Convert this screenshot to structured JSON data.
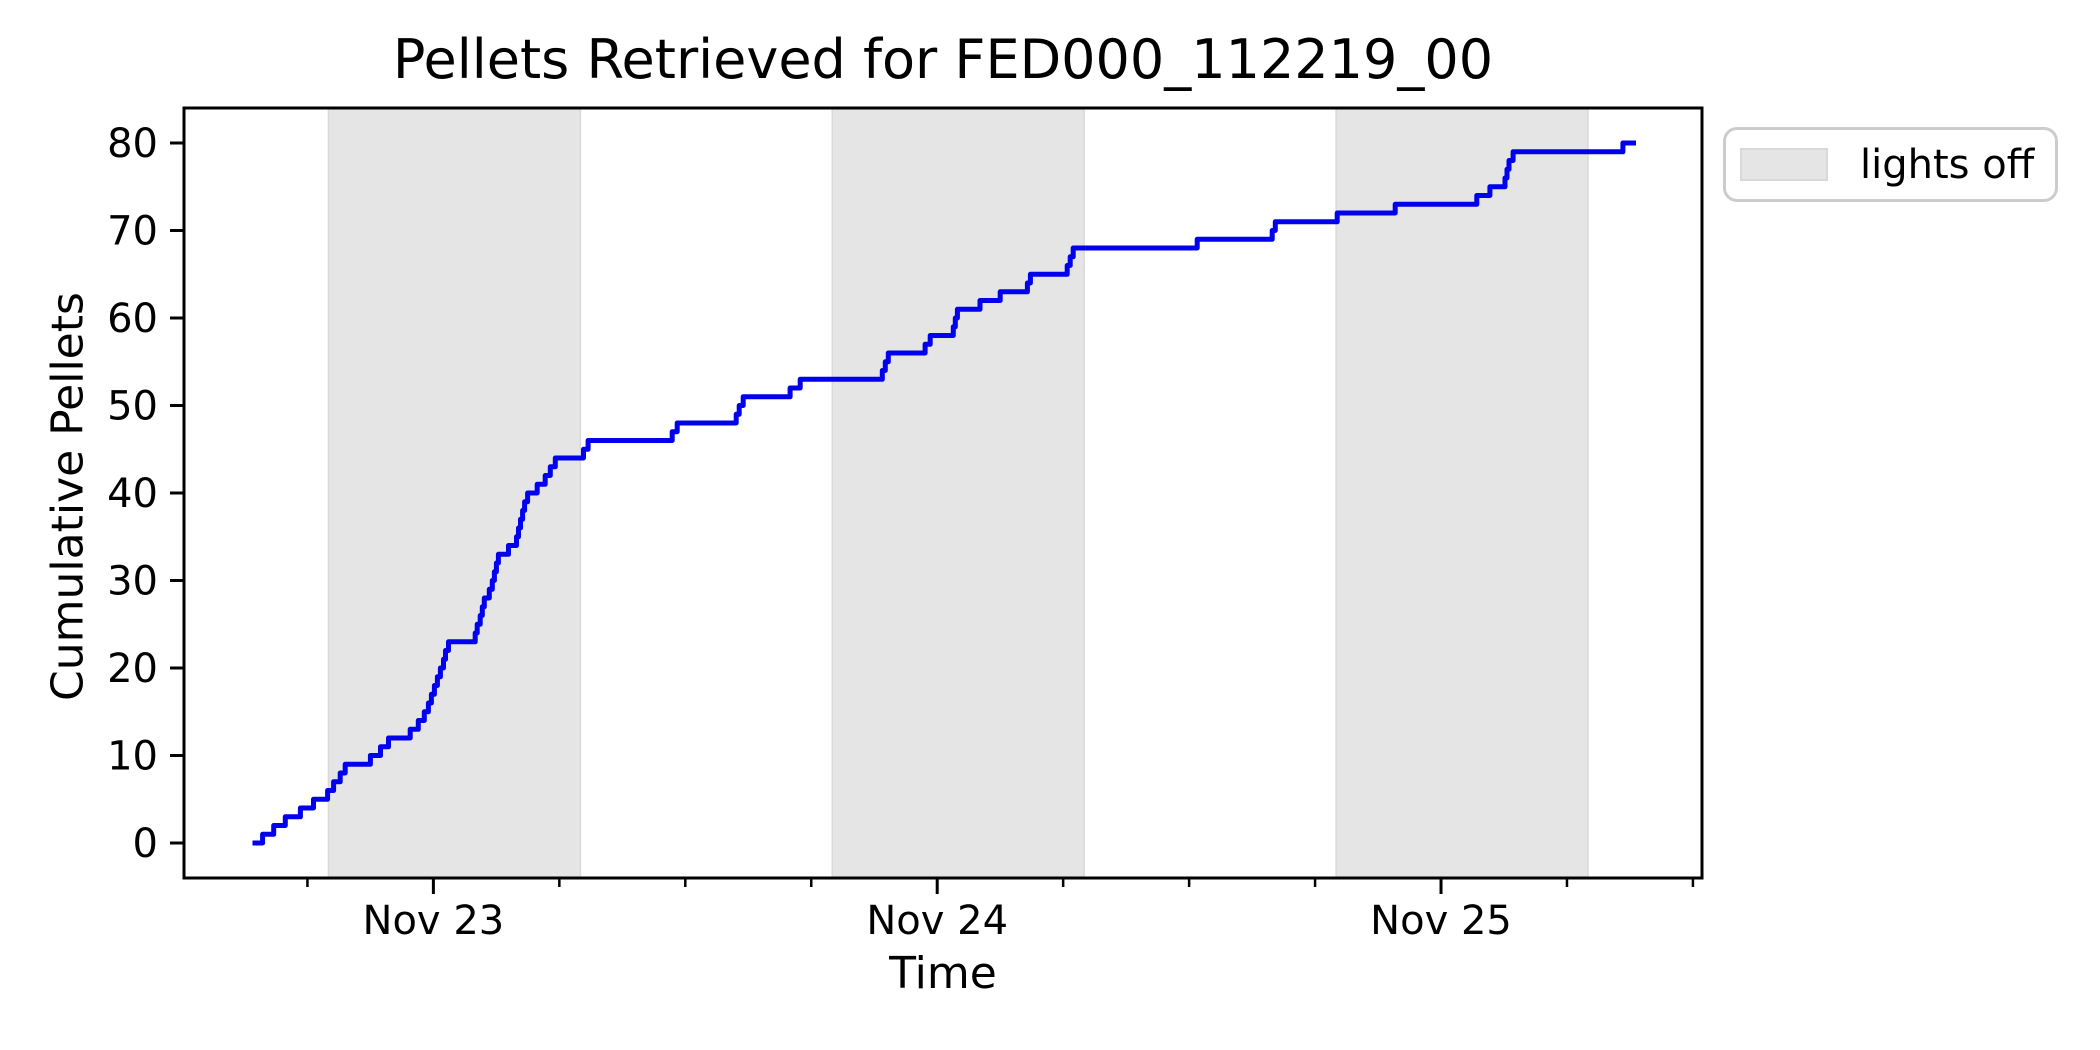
{
  "chart_data": {
    "type": "line",
    "line_style": "step-post",
    "title": "Pellets Retrieved for FED000_112219_00",
    "xlabel": "Time",
    "ylabel": "Cumulative Pellets",
    "legend": [
      {
        "label": "lights off",
        "swatch_color": "#e5e5e5"
      }
    ],
    "legend_position": "outside-top-right",
    "grid": false,
    "line_color": "#0000ee",
    "band_color": "#e5e5e5",
    "band_edge_color": "#d9d9d9",
    "x_axis": {
      "unit": "days since Nov 22 00:00",
      "lim": [
        0.505,
        3.518
      ],
      "major_ticks": [
        {
          "pos": 1.0,
          "label": "Nov 23"
        },
        {
          "pos": 2.0,
          "label": "Nov 24"
        },
        {
          "pos": 3.0,
          "label": "Nov 25"
        }
      ],
      "minor_ticks": [
        0.75,
        1.25,
        1.5,
        1.75,
        2.25,
        2.5,
        2.75,
        3.25,
        3.5
      ]
    },
    "y_axis": {
      "lim": [
        -4,
        84
      ],
      "ticks": [
        0,
        10,
        20,
        30,
        40,
        50,
        60,
        70,
        80
      ]
    },
    "lights_off_bands": [
      [
        0.7917,
        1.2917
      ],
      [
        1.7917,
        2.2917
      ],
      [
        2.7917,
        3.2917
      ]
    ],
    "series": [
      {
        "name": "cumulative pellets",
        "end_x": 3.387,
        "events": [
          [
            0.641,
            0
          ],
          [
            0.661,
            1
          ],
          [
            0.683,
            2
          ],
          [
            0.706,
            3
          ],
          [
            0.736,
            4
          ],
          [
            0.762,
            5
          ],
          [
            0.79,
            6
          ],
          [
            0.802,
            7
          ],
          [
            0.815,
            8
          ],
          [
            0.825,
            9
          ],
          [
            0.875,
            10
          ],
          [
            0.895,
            11
          ],
          [
            0.911,
            12
          ],
          [
            0.954,
            13
          ],
          [
            0.97,
            14
          ],
          [
            0.982,
            15
          ],
          [
            0.99,
            16
          ],
          [
            0.996,
            17
          ],
          [
            1.002,
            18
          ],
          [
            1.008,
            19
          ],
          [
            1.014,
            20
          ],
          [
            1.02,
            21
          ],
          [
            1.024,
            22
          ],
          [
            1.03,
            23
          ],
          [
            1.083,
            24
          ],
          [
            1.087,
            25
          ],
          [
            1.093,
            26
          ],
          [
            1.097,
            27
          ],
          [
            1.101,
            28
          ],
          [
            1.111,
            29
          ],
          [
            1.117,
            30
          ],
          [
            1.121,
            31
          ],
          [
            1.125,
            32
          ],
          [
            1.129,
            33
          ],
          [
            1.149,
            34
          ],
          [
            1.165,
            35
          ],
          [
            1.169,
            36
          ],
          [
            1.173,
            37
          ],
          [
            1.177,
            38
          ],
          [
            1.181,
            39
          ],
          [
            1.187,
            40
          ],
          [
            1.206,
            41
          ],
          [
            1.222,
            42
          ],
          [
            1.232,
            43
          ],
          [
            1.242,
            44
          ],
          [
            1.298,
            45
          ],
          [
            1.307,
            46
          ],
          [
            1.474,
            47
          ],
          [
            1.484,
            48
          ],
          [
            1.601,
            49
          ],
          [
            1.607,
            50
          ],
          [
            1.615,
            51
          ],
          [
            1.708,
            52
          ],
          [
            1.728,
            53
          ],
          [
            1.891,
            54
          ],
          [
            1.897,
            55
          ],
          [
            1.903,
            56
          ],
          [
            1.976,
            57
          ],
          [
            1.986,
            58
          ],
          [
            2.032,
            59
          ],
          [
            2.036,
            60
          ],
          [
            2.04,
            61
          ],
          [
            2.085,
            62
          ],
          [
            2.125,
            63
          ],
          [
            2.179,
            64
          ],
          [
            2.185,
            65
          ],
          [
            2.258,
            66
          ],
          [
            2.264,
            67
          ],
          [
            2.27,
            68
          ],
          [
            2.516,
            69
          ],
          [
            2.665,
            70
          ],
          [
            2.671,
            71
          ],
          [
            2.794,
            72
          ],
          [
            2.909,
            73
          ],
          [
            3.071,
            74
          ],
          [
            3.097,
            75
          ],
          [
            3.127,
            76
          ],
          [
            3.131,
            77
          ],
          [
            3.135,
            78
          ],
          [
            3.143,
            79
          ],
          [
            3.361,
            80
          ]
        ]
      }
    ]
  }
}
